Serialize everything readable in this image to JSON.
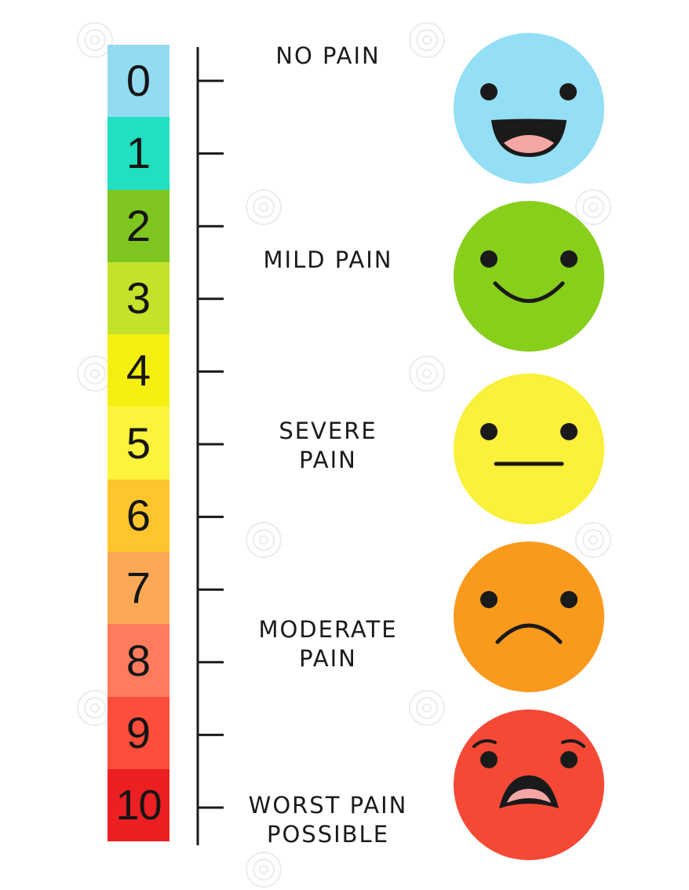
{
  "scale": {
    "levels": [
      {
        "value": "0",
        "color": "#92dbf0"
      },
      {
        "value": "1",
        "color": "#21dfc1"
      },
      {
        "value": "2",
        "color": "#7ec61f"
      },
      {
        "value": "3",
        "color": "#c5e22a"
      },
      {
        "value": "4",
        "color": "#f4ef10"
      },
      {
        "value": "5",
        "color": "#fdf33b"
      },
      {
        "value": "6",
        "color": "#fec62c"
      },
      {
        "value": "7",
        "color": "#fca956"
      },
      {
        "value": "8",
        "color": "#fe7b5e"
      },
      {
        "value": "9",
        "color": "#fe4e3b"
      },
      {
        "value": "10",
        "color": "#ec1f22"
      }
    ]
  },
  "labels": {
    "no_pain": "NO PAIN",
    "mild_pain": "MILD PAIN",
    "severe_pain_line1": "SEVERE",
    "severe_pain_line2": "PAIN",
    "moderate_pain_line1": "MODERATE",
    "moderate_pain_line2": "PAIN",
    "worst_pain_line1": "WORST PAIN",
    "worst_pain_line2": "POSSIBLE"
  },
  "faces": [
    {
      "name": "laughing-face-icon",
      "color": "#94dff5"
    },
    {
      "name": "smiling-face-icon",
      "color": "#88cf1c"
    },
    {
      "name": "neutral-face-icon",
      "color": "#fbf03a"
    },
    {
      "name": "sad-face-icon",
      "color": "#fa9a1d"
    },
    {
      "name": "distressed-face-icon",
      "color": "#f54936"
    }
  ],
  "colors": {
    "ink": "#1a1a1a",
    "mouth_tongue": "#f4a7a4"
  }
}
